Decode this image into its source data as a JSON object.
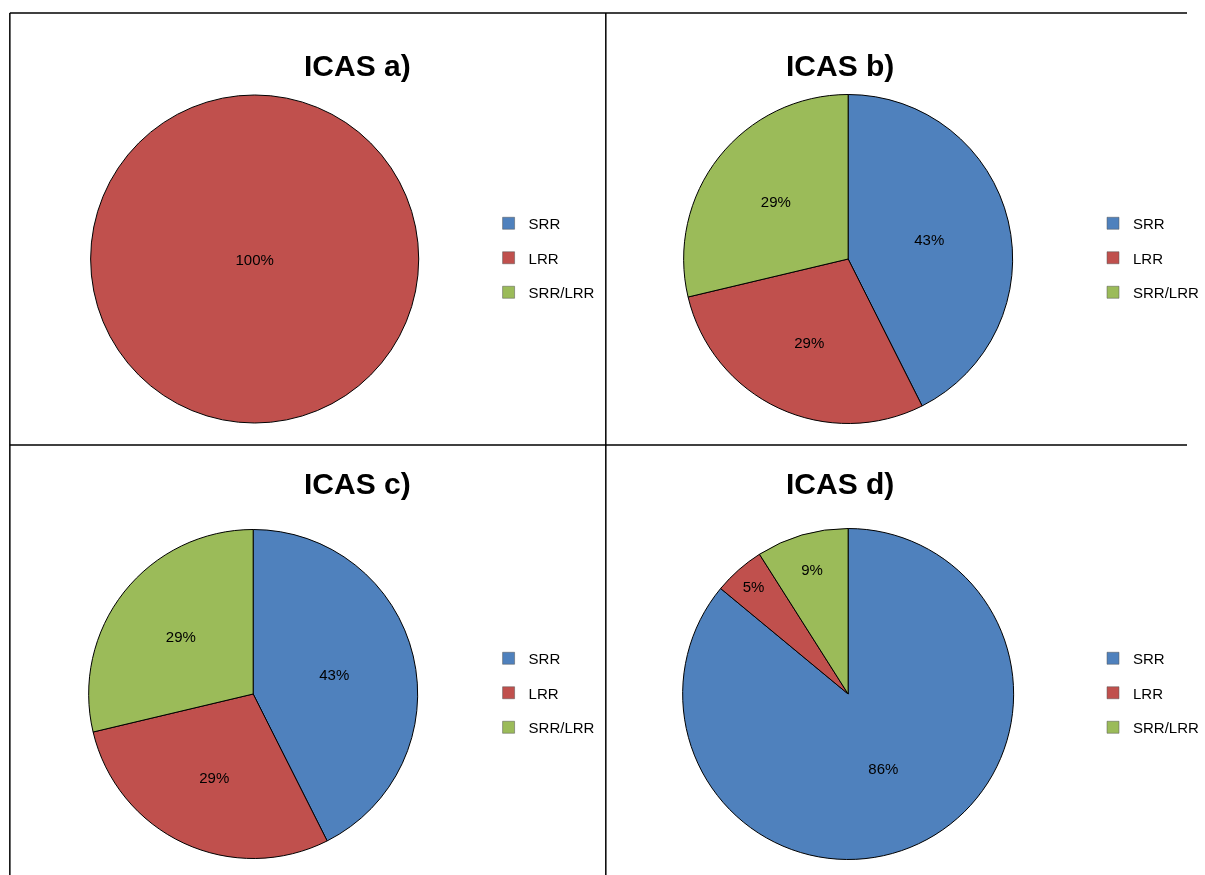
{
  "chart_data": [
    {
      "type": "pie",
      "title": "ICAS a)",
      "categories": [
        "SRR",
        "LRR",
        "SRR/LRR"
      ],
      "values": [
        0,
        100,
        0
      ],
      "colors": [
        "#4f81bd",
        "#c0504d",
        "#9bbb59"
      ],
      "value_labels": [
        null,
        "100%",
        null
      ],
      "legend": "right"
    },
    {
      "type": "pie",
      "title": "ICAS b)",
      "categories": [
        "SRR",
        "LRR",
        "SRR/LRR"
      ],
      "values": [
        43,
        29,
        29
      ],
      "colors": [
        "#4f81bd",
        "#c0504d",
        "#9bbb59"
      ],
      "value_labels": [
        "43%",
        "29%",
        "29%"
      ],
      "legend": "right"
    },
    {
      "type": "pie",
      "title": "ICAS c)",
      "categories": [
        "SRR",
        "LRR",
        "SRR/LRR"
      ],
      "values": [
        43,
        29,
        29
      ],
      "colors": [
        "#4f81bd",
        "#c0504d",
        "#9bbb59"
      ],
      "value_labels": [
        "43%",
        "29%",
        "29%"
      ],
      "legend": "right"
    },
    {
      "type": "pie",
      "title": "ICAS d)",
      "categories": [
        "SRR",
        "LRR",
        "SRR/LRR"
      ],
      "values": [
        86,
        5,
        9
      ],
      "colors": [
        "#4f81bd",
        "#c0504d",
        "#9bbb59"
      ],
      "value_labels": [
        "86%",
        "5%",
        "9%"
      ],
      "legend": "right"
    }
  ]
}
